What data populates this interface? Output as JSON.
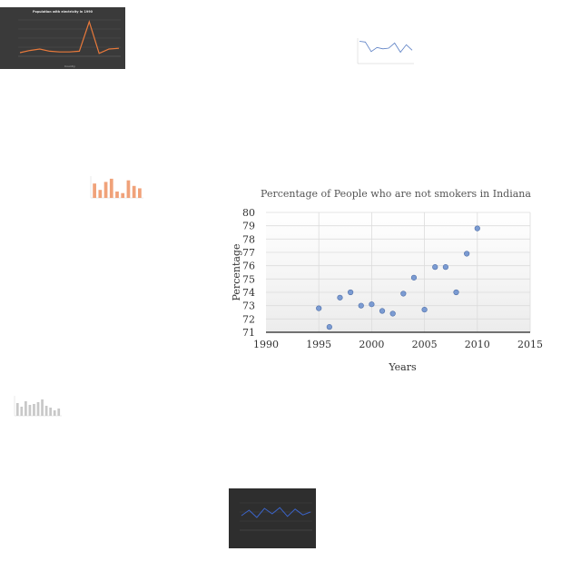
{
  "chart_data": [
    {
      "type": "scatter",
      "title": "Percentage of People who are not smokers in Indiana",
      "xlabel": "Years",
      "ylabel": "Percentage",
      "xlim": [
        1990,
        2015
      ],
      "ylim": [
        71,
        80
      ],
      "xticks": [
        1990,
        1995,
        2000,
        2005,
        2010,
        2015
      ],
      "yticks": [
        71,
        72,
        73,
        74,
        75,
        76,
        77,
        78,
        79,
        80
      ],
      "grid": true,
      "colors": {
        "point": "#7b9bd2",
        "point_stroke": "#4f6fa8"
      },
      "points": [
        {
          "x": 1995,
          "y": 72.8
        },
        {
          "x": 1996,
          "y": 71.4
        },
        {
          "x": 1997,
          "y": 73.6
        },
        {
          "x": 1998,
          "y": 74.0
        },
        {
          "x": 1999,
          "y": 73.0
        },
        {
          "x": 2000,
          "y": 73.1
        },
        {
          "x": 2001,
          "y": 72.6
        },
        {
          "x": 2002,
          "y": 72.4
        },
        {
          "x": 2003,
          "y": 73.9
        },
        {
          "x": 2004,
          "y": 75.1
        },
        {
          "x": 2005,
          "y": 72.7
        },
        {
          "x": 2006,
          "y": 75.9
        },
        {
          "x": 2007,
          "y": 75.9
        },
        {
          "x": 2008,
          "y": 74.0
        },
        {
          "x": 2009,
          "y": 76.9
        },
        {
          "x": 2010,
          "y": 78.8
        }
      ]
    },
    {
      "type": "line",
      "title": "Population with electricity in 1990",
      "xlabel": "Country",
      "colors": {
        "line": "#e8793a",
        "background": "#3a3a3a"
      },
      "values": [
        10,
        16,
        20,
        14,
        12,
        12,
        14,
        95,
        8,
        20,
        22
      ]
    },
    {
      "type": "line",
      "colors": {
        "line": "#5b7fc4"
      },
      "values": [
        60,
        58,
        30,
        42,
        38,
        40,
        55,
        28,
        50,
        34
      ]
    },
    {
      "type": "bar",
      "colors": {
        "bar": "#f0a27a"
      },
      "values": [
        18,
        10,
        20,
        24,
        8,
        6,
        22,
        15,
        12
      ]
    },
    {
      "type": "bar",
      "colors": {
        "bar": "#c8c8c8"
      },
      "values": [
        14,
        10,
        16,
        12,
        13,
        15,
        18,
        11,
        9,
        6,
        8
      ]
    },
    {
      "type": "line",
      "colors": {
        "line": "#3b64c9",
        "background": "#2e2e2e"
      },
      "values": [
        40,
        55,
        35,
        60,
        45,
        62,
        38,
        58,
        42,
        50
      ]
    }
  ]
}
